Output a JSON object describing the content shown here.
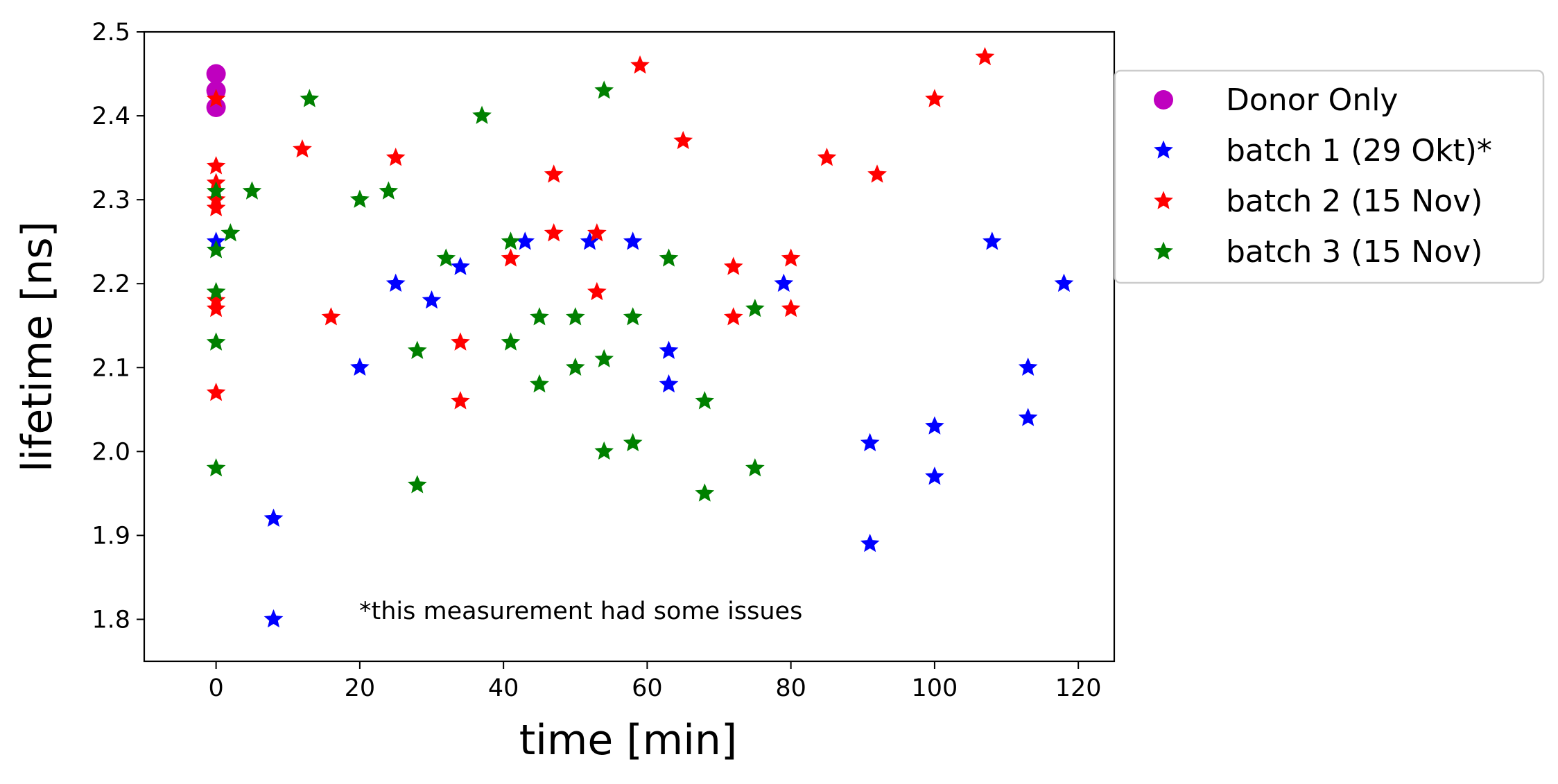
{
  "chart_data": {
    "type": "scatter",
    "xlabel": "time [min]",
    "ylabel": "lifetime [ns]",
    "xlim": [
      -10,
      125
    ],
    "ylim": [
      1.75,
      2.5
    ],
    "x_ticks": [
      "0",
      "20",
      "40",
      "60",
      "80",
      "100",
      "120"
    ],
    "y_ticks": [
      "1.8",
      "1.9",
      "2.0",
      "2.1",
      "2.2",
      "2.3",
      "2.4",
      "2.5"
    ],
    "grid": false,
    "legend_position": "outside upper right",
    "annotation": "*this measurement had some issues",
    "series": [
      {
        "name": " Donor Only",
        "marker": "circle",
        "color": "#bf00bf",
        "points": [
          [
            0,
            2.45
          ],
          [
            0,
            2.43
          ],
          [
            0,
            2.41
          ]
        ]
      },
      {
        "name": "batch 1 (29 Okt)*",
        "marker": "star",
        "color": "#0000ff",
        "points": [
          [
            0,
            2.25
          ],
          [
            8,
            1.92
          ],
          [
            8,
            1.8
          ],
          [
            20,
            2.1
          ],
          [
            25,
            2.2
          ],
          [
            30,
            2.18
          ],
          [
            34,
            2.22
          ],
          [
            43,
            2.25
          ],
          [
            52,
            2.25
          ],
          [
            58,
            2.25
          ],
          [
            63,
            2.12
          ],
          [
            63,
            2.08
          ],
          [
            79,
            2.2
          ],
          [
            91,
            2.01
          ],
          [
            91,
            1.89
          ],
          [
            100,
            2.03
          ],
          [
            100,
            1.97
          ],
          [
            108,
            2.25
          ],
          [
            113,
            2.1
          ],
          [
            113,
            2.04
          ],
          [
            118,
            2.2
          ]
        ]
      },
      {
        "name": "batch 2 (15 Nov)",
        "marker": "star",
        "color": "#ff0000",
        "points": [
          [
            0,
            2.42
          ],
          [
            0,
            2.34
          ],
          [
            0,
            2.32
          ],
          [
            0,
            2.3
          ],
          [
            0,
            2.29
          ],
          [
            0,
            2.18
          ],
          [
            0,
            2.17
          ],
          [
            0,
            2.07
          ],
          [
            12,
            2.36
          ],
          [
            16,
            2.16
          ],
          [
            25,
            2.35
          ],
          [
            34,
            2.13
          ],
          [
            34,
            2.06
          ],
          [
            41,
            2.23
          ],
          [
            47,
            2.33
          ],
          [
            47,
            2.26
          ],
          [
            53,
            2.26
          ],
          [
            53,
            2.19
          ],
          [
            59,
            2.46
          ],
          [
            65,
            2.37
          ],
          [
            72,
            2.22
          ],
          [
            72,
            2.16
          ],
          [
            80,
            2.23
          ],
          [
            80,
            2.17
          ],
          [
            85,
            2.35
          ],
          [
            92,
            2.33
          ],
          [
            100,
            2.42
          ],
          [
            107,
            2.47
          ]
        ]
      },
      {
        "name": "batch 3 (15 Nov)",
        "marker": "star",
        "color": "#008000",
        "points": [
          [
            0,
            2.31
          ],
          [
            0,
            2.24
          ],
          [
            0,
            2.19
          ],
          [
            0,
            2.13
          ],
          [
            0,
            1.98
          ],
          [
            2,
            2.26
          ],
          [
            5,
            2.31
          ],
          [
            13,
            2.42
          ],
          [
            20,
            2.3
          ],
          [
            24,
            2.31
          ],
          [
            28,
            2.12
          ],
          [
            28,
            1.96
          ],
          [
            32,
            2.23
          ],
          [
            37,
            2.4
          ],
          [
            41,
            2.25
          ],
          [
            41,
            2.13
          ],
          [
            45,
            2.16
          ],
          [
            45,
            2.08
          ],
          [
            50,
            2.16
          ],
          [
            50,
            2.1
          ],
          [
            54,
            2.43
          ],
          [
            54,
            2.11
          ],
          [
            54,
            2.0
          ],
          [
            58,
            2.16
          ],
          [
            58,
            2.01
          ],
          [
            63,
            2.23
          ],
          [
            68,
            2.06
          ],
          [
            68,
            1.95
          ],
          [
            75,
            2.17
          ],
          [
            75,
            1.98
          ]
        ]
      }
    ]
  }
}
